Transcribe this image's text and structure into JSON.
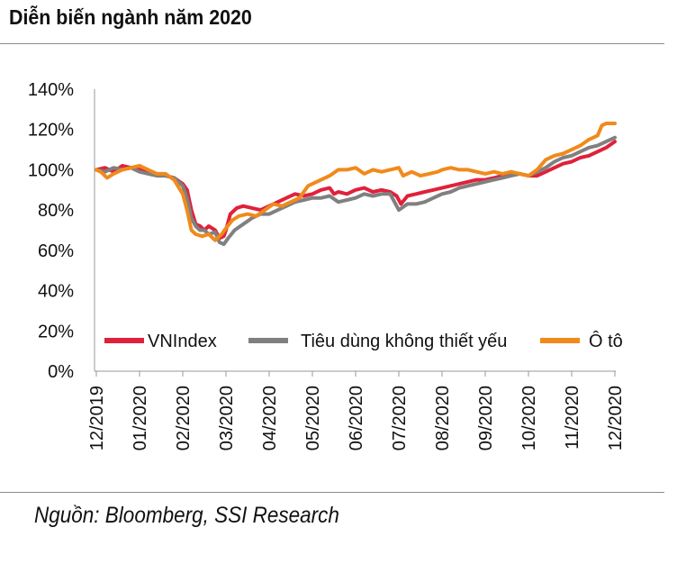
{
  "title": "Diễn biến ngành năm 2020",
  "source": "Nguồn: Bloomberg, SSI Research",
  "chart_data": {
    "type": "line",
    "title": "Diễn biến ngành năm 2020",
    "xlabel": "",
    "ylabel": "",
    "ylim": [
      0,
      140
    ],
    "y_ticks": [
      "0%",
      "20%",
      "40%",
      "60%",
      "80%",
      "100%",
      "120%",
      "140%"
    ],
    "x_ticks": [
      "12/2019",
      "01/2020",
      "02/2020",
      "03/2020",
      "04/2020",
      "05/2020",
      "06/2020",
      "07/2020",
      "08/2020",
      "09/2020",
      "10/2020",
      "11/2020",
      "12/2020"
    ],
    "grid": false,
    "legend_position": "bottom-inside",
    "series": [
      {
        "name": "VNIndex",
        "color": "#e0213b",
        "x": [
          0,
          0.2,
          0.4,
          0.6,
          0.8,
          1.0,
          1.1,
          1.25,
          1.4,
          1.6,
          1.8,
          2.0,
          2.1,
          2.2,
          2.3,
          2.4,
          2.5,
          2.6,
          2.75,
          2.85,
          2.95,
          3.0,
          3.1,
          3.25,
          3.4,
          3.6,
          3.8,
          4.0,
          4.2,
          4.4,
          4.6,
          4.8,
          5.0,
          5.2,
          5.4,
          5.5,
          5.6,
          5.8,
          6.0,
          6.2,
          6.4,
          6.6,
          6.8,
          6.95,
          7.05,
          7.2,
          7.4,
          7.6,
          7.8,
          8.0,
          8.2,
          8.4,
          8.6,
          8.8,
          9.0,
          9.2,
          9.4,
          9.6,
          9.8,
          10.0,
          10.2,
          10.4,
          10.6,
          10.8,
          11.0,
          11.2,
          11.4,
          11.6,
          11.8,
          12.0
        ],
        "y": [
          100,
          101,
          99,
          102,
          101,
          100,
          100,
          99,
          98,
          97,
          96,
          93,
          90,
          80,
          73,
          72,
          70,
          72,
          70,
          66,
          67,
          70,
          78,
          81,
          82,
          81,
          80,
          82,
          84,
          86,
          88,
          87,
          88,
          90,
          91,
          88,
          89,
          88,
          90,
          91,
          89,
          90,
          89,
          87,
          83,
          87,
          88,
          89,
          90,
          91,
          92,
          93,
          94,
          95,
          95,
          96,
          97,
          98,
          98,
          97,
          97,
          99,
          101,
          103,
          104,
          106,
          107,
          109,
          111,
          114
        ]
      },
      {
        "name": "Tiêu dùng không thiết yếu",
        "color": "#808080",
        "x": [
          0,
          0.2,
          0.4,
          0.6,
          0.8,
          1.0,
          1.2,
          1.4,
          1.6,
          1.8,
          2.0,
          2.1,
          2.2,
          2.3,
          2.4,
          2.5,
          2.6,
          2.75,
          2.85,
          2.95,
          3.05,
          3.2,
          3.4,
          3.6,
          3.8,
          4.0,
          4.2,
          4.4,
          4.6,
          4.8,
          5.0,
          5.2,
          5.4,
          5.6,
          5.8,
          6.0,
          6.2,
          6.4,
          6.6,
          6.8,
          6.9,
          7.0,
          7.2,
          7.4,
          7.6,
          7.8,
          8.0,
          8.2,
          8.4,
          8.6,
          8.8,
          9.0,
          9.2,
          9.4,
          9.6,
          9.8,
          10.0,
          10.2,
          10.4,
          10.6,
          10.8,
          11.0,
          11.2,
          11.4,
          11.6,
          11.8,
          12.0
        ],
        "y": [
          100,
          99,
          101,
          100,
          101,
          99,
          98,
          97,
          97,
          96,
          92,
          86,
          76,
          72,
          70,
          70,
          68,
          69,
          64,
          63,
          66,
          70,
          73,
          76,
          78,
          78,
          80,
          82,
          84,
          85,
          86,
          86,
          87,
          84,
          85,
          86,
          88,
          87,
          88,
          88,
          84,
          80,
          83,
          83,
          84,
          86,
          88,
          89,
          91,
          92,
          93,
          94,
          95,
          96,
          97,
          98,
          97,
          99,
          101,
          104,
          106,
          107,
          109,
          111,
          112,
          114,
          116
        ]
      },
      {
        "name": "Ô tô",
        "color": "#f08a1c",
        "x": [
          0,
          0.1,
          0.25,
          0.4,
          0.6,
          0.8,
          1.0,
          1.2,
          1.4,
          1.6,
          1.8,
          2.0,
          2.1,
          2.2,
          2.3,
          2.45,
          2.6,
          2.75,
          2.9,
          3.0,
          3.15,
          3.3,
          3.5,
          3.7,
          3.9,
          4.1,
          4.3,
          4.5,
          4.7,
          4.9,
          5.0,
          5.2,
          5.4,
          5.6,
          5.8,
          6.0,
          6.2,
          6.4,
          6.6,
          6.8,
          7.0,
          7.1,
          7.3,
          7.5,
          7.7,
          7.9,
          8.0,
          8.2,
          8.4,
          8.6,
          8.8,
          9.0,
          9.2,
          9.4,
          9.6,
          9.8,
          10.0,
          10.2,
          10.4,
          10.6,
          10.8,
          11.0,
          11.2,
          11.4,
          11.6,
          11.7,
          11.8,
          12.0
        ],
        "y": [
          100,
          99,
          96,
          98,
          100,
          101,
          102,
          100,
          98,
          98,
          95,
          88,
          80,
          70,
          68,
          67,
          68,
          65,
          68,
          71,
          75,
          77,
          78,
          77,
          80,
          83,
          82,
          84,
          86,
          92,
          93,
          95,
          97,
          100,
          100,
          101,
          98,
          100,
          99,
          100,
          101,
          97,
          99,
          97,
          98,
          99,
          100,
          101,
          100,
          100,
          99,
          98,
          99,
          98,
          99,
          98,
          97,
          100,
          105,
          107,
          108,
          110,
          112,
          115,
          117,
          122,
          123,
          123
        ]
      }
    ]
  }
}
